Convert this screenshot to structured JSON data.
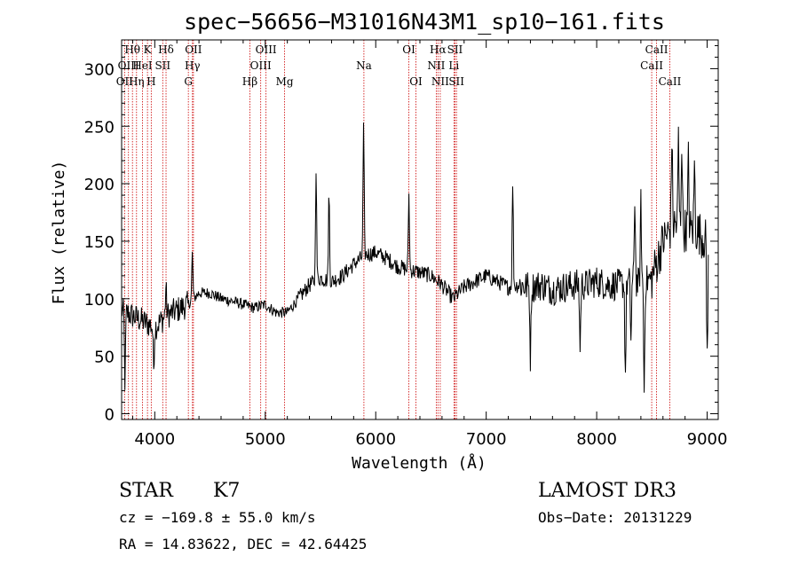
{
  "chart_data": {
    "type": "line",
    "title": "spec−56656−M31016N43M1_sp10−161.fits",
    "xlabel": "Wavelength (Å)",
    "ylabel": "Flux (relative)",
    "xlim": [
      3700,
      9100
    ],
    "ylim": [
      -5,
      325
    ],
    "xticks": [
      4000,
      5000,
      6000,
      7000,
      8000,
      9000
    ],
    "yticks": [
      0,
      50,
      100,
      150,
      200,
      250,
      300
    ],
    "x_tick_labels": [
      "4000",
      "5000",
      "6000",
      "7000",
      "8000",
      "9000"
    ],
    "y_tick_labels": [
      "0",
      "50",
      "100",
      "150",
      "200",
      "250",
      "300"
    ],
    "continuum": [
      [
        3700,
        90
      ],
      [
        3800,
        85
      ],
      [
        3900,
        80
      ],
      [
        4000,
        75
      ],
      [
        4100,
        85
      ],
      [
        4200,
        90
      ],
      [
        4300,
        95
      ],
      [
        4400,
        105
      ],
      [
        4500,
        105
      ],
      [
        4600,
        100
      ],
      [
        4700,
        98
      ],
      [
        4800,
        95
      ],
      [
        4900,
        92
      ],
      [
        5000,
        95
      ],
      [
        5100,
        88
      ],
      [
        5200,
        88
      ],
      [
        5300,
        100
      ],
      [
        5400,
        112
      ],
      [
        5500,
        118
      ],
      [
        5600,
        115
      ],
      [
        5700,
        120
      ],
      [
        5800,
        130
      ],
      [
        5900,
        138
      ],
      [
        6000,
        140
      ],
      [
        6100,
        135
      ],
      [
        6200,
        128
      ],
      [
        6300,
        125
      ],
      [
        6400,
        123
      ],
      [
        6500,
        120
      ],
      [
        6600,
        112
      ],
      [
        6700,
        100
      ],
      [
        6800,
        110
      ],
      [
        6900,
        115
      ],
      [
        7000,
        120
      ],
      [
        7100,
        115
      ],
      [
        7200,
        110
      ],
      [
        7300,
        112
      ],
      [
        7400,
        110
      ],
      [
        7500,
        112
      ],
      [
        7600,
        108
      ],
      [
        7700,
        110
      ],
      [
        7800,
        112
      ],
      [
        7900,
        112
      ],
      [
        8000,
        115
      ],
      [
        8100,
        112
      ],
      [
        8200,
        112
      ],
      [
        8300,
        115
      ],
      [
        8400,
        113
      ],
      [
        8500,
        118
      ],
      [
        8600,
        150
      ],
      [
        8700,
        165
      ],
      [
        8800,
        160
      ],
      [
        8900,
        160
      ],
      [
        9000,
        150
      ]
    ],
    "features": [
      [
        4101,
        25
      ],
      [
        4340,
        40
      ],
      [
        5460,
        100
      ],
      [
        5577,
        75
      ],
      [
        5890,
        110
      ],
      [
        6300,
        65
      ],
      [
        7240,
        90
      ],
      [
        8345,
        75
      ],
      [
        8400,
        70
      ],
      [
        8680,
        80
      ],
      [
        8740,
        75
      ],
      [
        8770,
        80
      ],
      [
        8830,
        60
      ],
      [
        8885,
        55
      ],
      [
        3730,
        -60
      ],
      [
        3990,
        -35
      ],
      [
        7400,
        -60
      ],
      [
        7850,
        -55
      ],
      [
        8260,
        -80
      ],
      [
        8310,
        -50
      ],
      [
        8430,
        -95
      ],
      [
        9000,
        -100
      ]
    ],
    "spectral_lines": [
      {
        "name": "Hθ",
        "wave": 3798,
        "row": 0
      },
      {
        "name": "K",
        "wave": 3934,
        "row": 0
      },
      {
        "name": "Hδ",
        "wave": 4102,
        "row": 0
      },
      {
        "name": "OII",
        "wave": 4350,
        "row": 0
      },
      {
        "name": "OIII",
        "wave": 5007,
        "row": 0
      },
      {
        "name": "OI",
        "wave": 6300,
        "row": 0
      },
      {
        "name": "Hα",
        "wave": 6563,
        "row": 0
      },
      {
        "name": "SII",
        "wave": 6717,
        "row": 0
      },
      {
        "name": "CaII",
        "wave": 8542,
        "row": 0
      },
      {
        "name": "OIII",
        "wave": 3762,
        "row": 1
      },
      {
        "name": "HeI",
        "wave": 3889,
        "row": 1
      },
      {
        "name": "SII",
        "wave": 4072,
        "row": 1
      },
      {
        "name": "Hγ",
        "wave": 4341,
        "row": 1
      },
      {
        "name": "OIII",
        "wave": 4959,
        "row": 1
      },
      {
        "name": "Na",
        "wave": 5893,
        "row": 1
      },
      {
        "name": "NII",
        "wave": 6548,
        "row": 1
      },
      {
        "name": "Li",
        "wave": 6708,
        "row": 1
      },
      {
        "name": "CaII",
        "wave": 8498,
        "row": 1
      },
      {
        "name": "OII",
        "wave": 3727,
        "row": 2
      },
      {
        "name": "Hη",
        "wave": 3835,
        "row": 2
      },
      {
        "name": "H",
        "wave": 3968,
        "row": 2
      },
      {
        "name": "G",
        "wave": 4304,
        "row": 2
      },
      {
        "name": "Hβ",
        "wave": 4861,
        "row": 2
      },
      {
        "name": "Mg",
        "wave": 5175,
        "row": 2
      },
      {
        "name": "OI",
        "wave": 6364,
        "row": 2
      },
      {
        "name": "NII",
        "wave": 6584,
        "row": 2
      },
      {
        "name": "SII",
        "wave": 6731,
        "row": 2
      },
      {
        "name": "CaII",
        "wave": 8662,
        "row": 2
      }
    ]
  },
  "info": {
    "object_class": "STAR",
    "subclass": "K7",
    "survey": "LAMOST DR3",
    "velocity": "cz = −169.8 ± 55.0 km/s",
    "obs_date": "Obs−Date: 20131229",
    "coordinates": "RA =  14.83622, DEC =  42.64425"
  },
  "colors": {
    "spectrum": "#000000",
    "line_marker": "#cc0000",
    "background": "#ffffff"
  }
}
